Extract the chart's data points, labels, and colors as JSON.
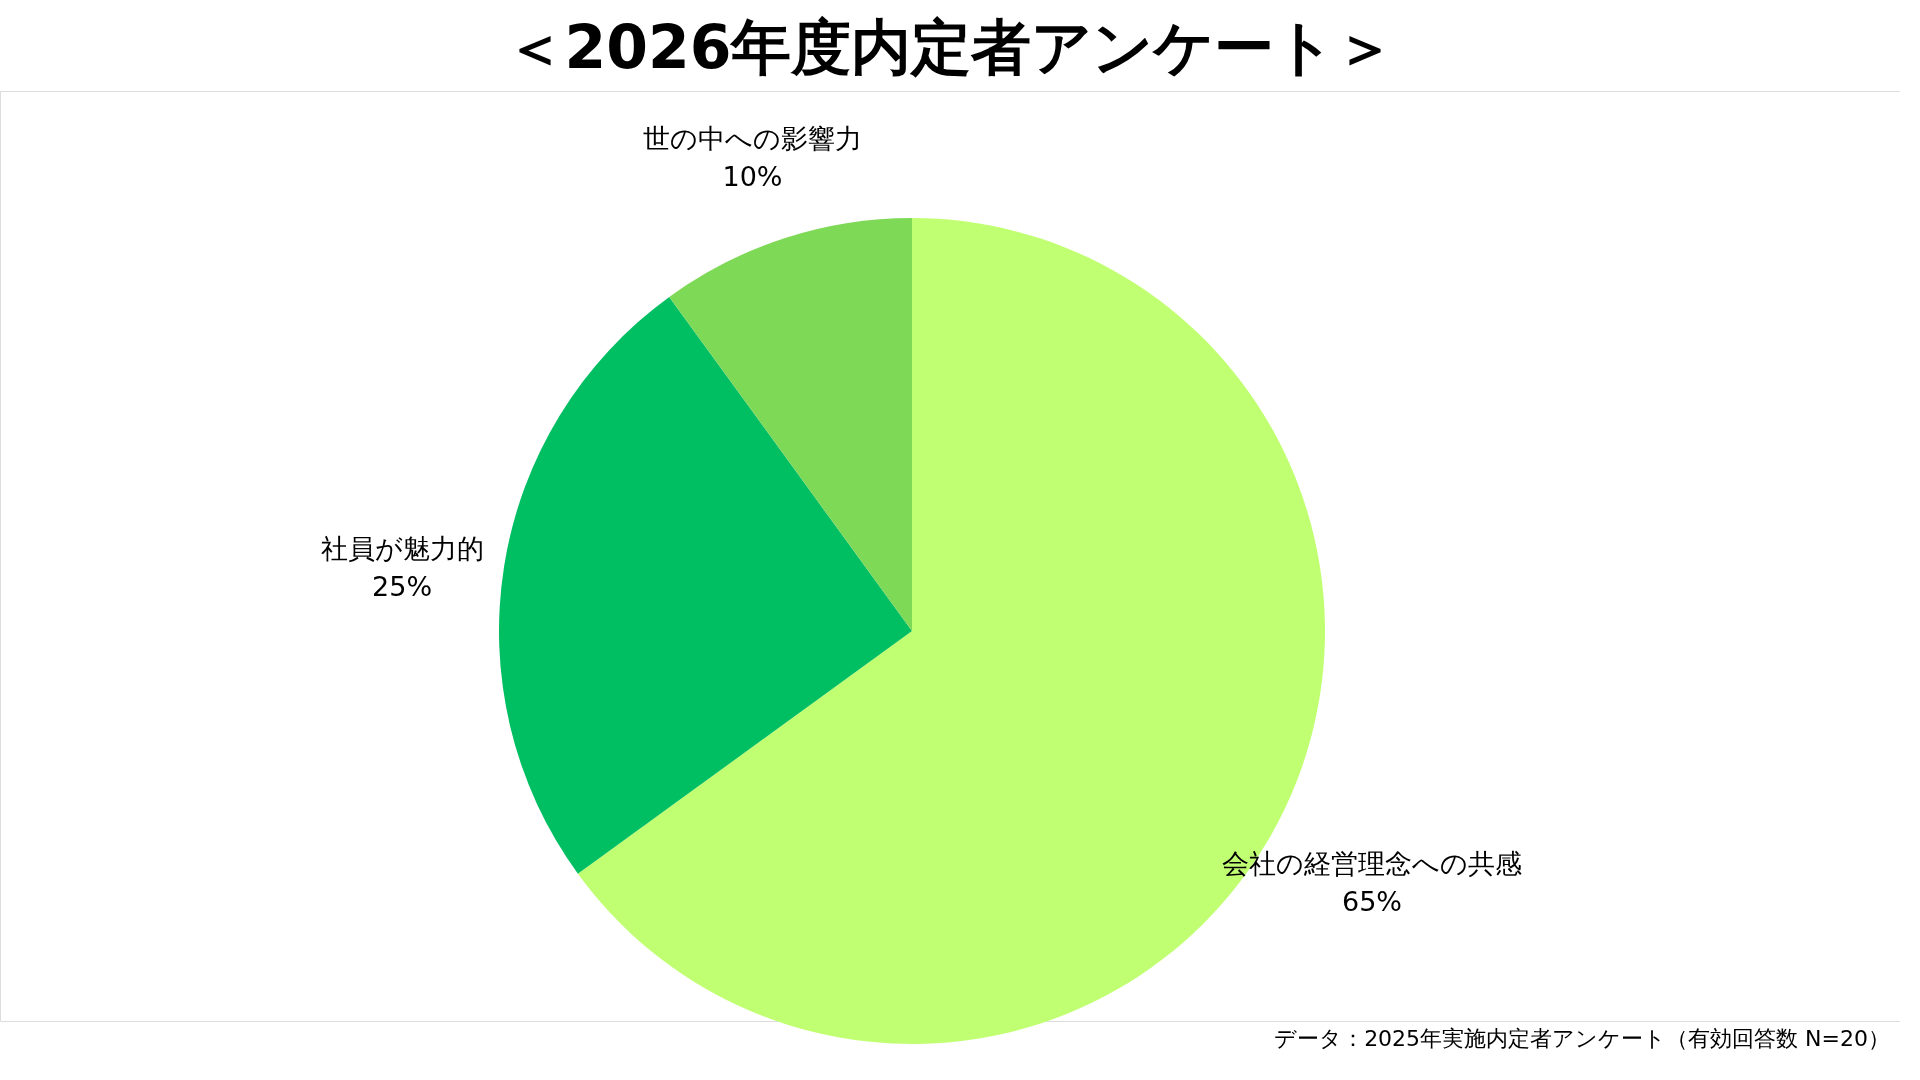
{
  "chart_data": {
    "type": "pie",
    "title": "＜2026年度内定者アンケート＞",
    "categories": [
      "会社の経営理念への共感",
      "社員が魅力的",
      "世の中への影響力"
    ],
    "values": [
      65,
      25,
      10
    ],
    "value_labels": [
      "65%",
      "25%",
      "10%"
    ],
    "colors": [
      "#c1ff72",
      "#00bf63",
      "#7ed957"
    ],
    "legend": false,
    "annotations": [
      "データ：2025年実施内定者アンケート（有効回答数 N=20）"
    ]
  }
}
